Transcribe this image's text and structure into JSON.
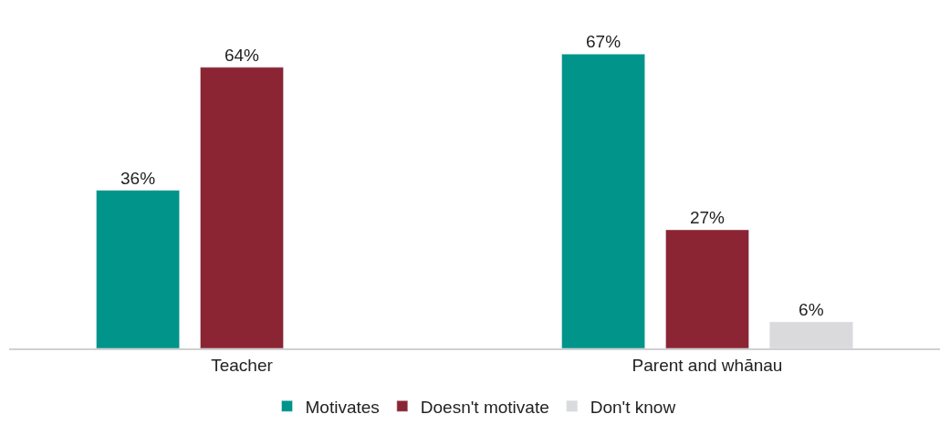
{
  "chart_data": {
    "type": "bar",
    "categories": [
      "Teacher",
      "Parent and whānau"
    ],
    "series": [
      {
        "name": "Motivates",
        "color": "#00948a",
        "values": [
          36,
          67
        ],
        "value_labels": [
          "36%",
          "67%"
        ]
      },
      {
        "name": "Doesn't motivate",
        "color": "#8b2533",
        "values": [
          64,
          27
        ],
        "value_labels": [
          "64%",
          "27%"
        ]
      },
      {
        "name": "Don't know",
        "color": "#dadadc",
        "values": [
          null,
          6
        ],
        "value_labels": [
          null,
          "6%"
        ]
      }
    ],
    "legend": "bottom"
  }
}
